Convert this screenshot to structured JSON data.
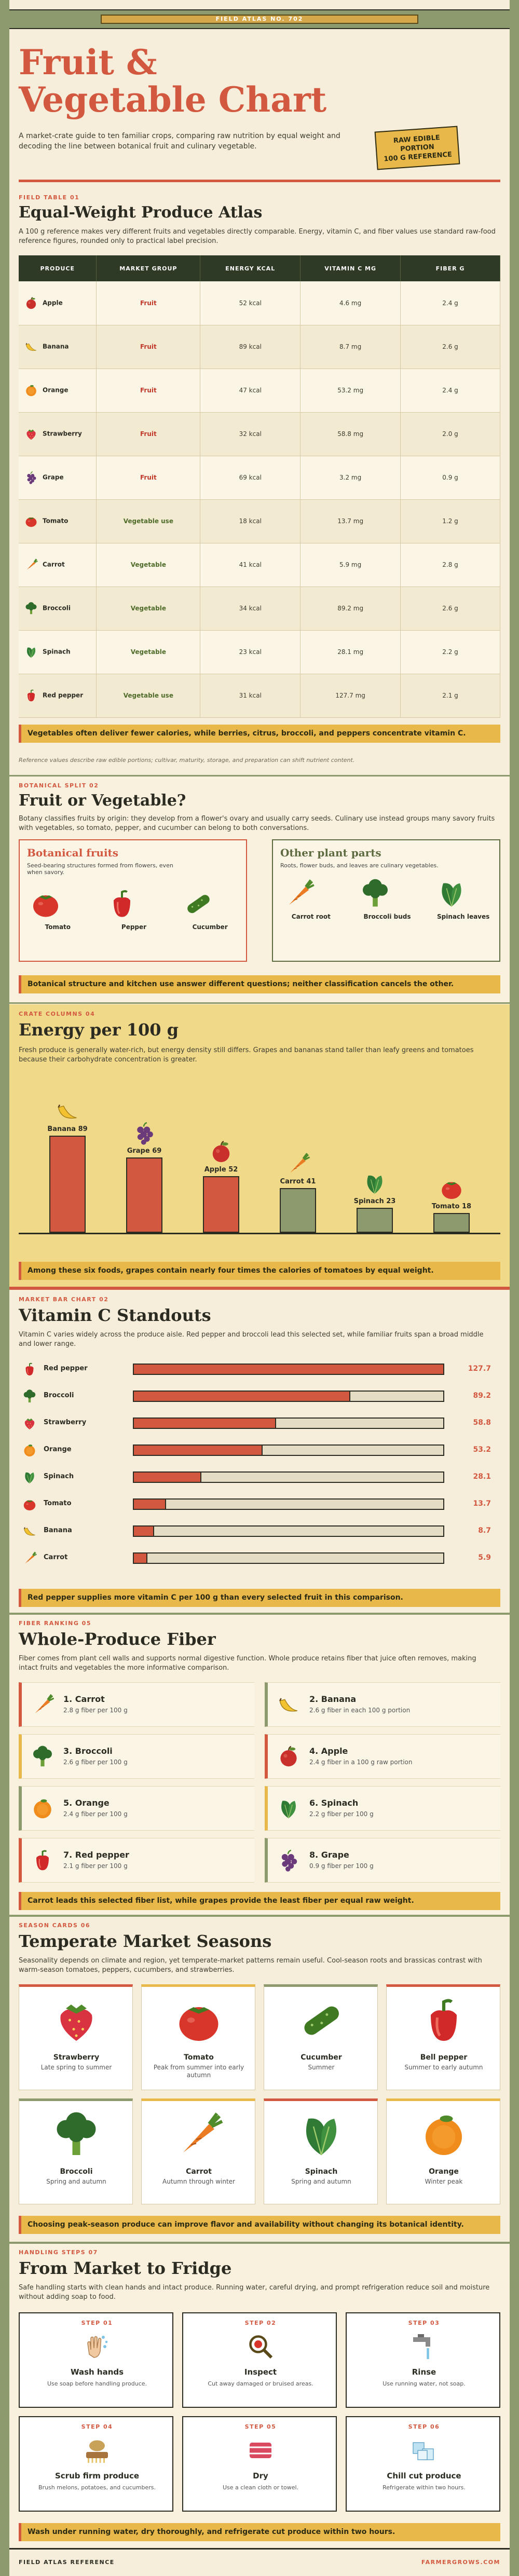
{
  "topbar": {
    "label": "FIELD ATLAS NO. 702"
  },
  "hero": {
    "title_line1": "Fruit &",
    "title_line2": "Vegetable Chart",
    "intro": "A market-crate guide to ten familiar crops, comparing raw nutrition by equal weight and decoding the line between botanical fruit and culinary vegetable.",
    "badge_line1": "RAW EDIBLE",
    "badge_line2": "PORTION",
    "badge_line3": "100 G REFERENCE"
  },
  "atlas": {
    "label": "FIELD TABLE 01",
    "title": "Equal-Weight Produce Atlas",
    "desc": "A 100 g reference makes very different fruits and vegetables directly comparable. Energy, vitamin C, and fiber values use standard raw-food reference figures, rounded only to practical label precision.",
    "headers": [
      "PRODUCE",
      "MARKET GROUP",
      "ENERGY KCAL",
      "VITAMIN C MG",
      "FIBER G"
    ],
    "rows": [
      {
        "name": "Apple",
        "group": "Fruit",
        "energy": "52 kcal",
        "vitc": "4.6 mg",
        "fiber": "2.4 g",
        "icon": "apple-icon"
      },
      {
        "name": "Banana",
        "group": "Fruit",
        "energy": "89 kcal",
        "vitc": "8.7 mg",
        "fiber": "2.6 g",
        "icon": "banana-icon"
      },
      {
        "name": "Orange",
        "group": "Fruit",
        "energy": "47 kcal",
        "vitc": "53.2 mg",
        "fiber": "2.4 g",
        "icon": "orange-icon"
      },
      {
        "name": "Strawberry",
        "group": "Fruit",
        "energy": "32 kcal",
        "vitc": "58.8 mg",
        "fiber": "2.0 g",
        "icon": "strawberry-icon"
      },
      {
        "name": "Grape",
        "group": "Fruit",
        "energy": "69 kcal",
        "vitc": "3.2 mg",
        "fiber": "0.9 g",
        "icon": "grape-icon"
      },
      {
        "name": "Tomato",
        "group": "Vegetable use",
        "energy": "18 kcal",
        "vitc": "13.7 mg",
        "fiber": "1.2 g",
        "icon": "tomato-icon"
      },
      {
        "name": "Carrot",
        "group": "Vegetable",
        "energy": "41 kcal",
        "vitc": "5.9 mg",
        "fiber": "2.8 g",
        "icon": "carrot-icon"
      },
      {
        "name": "Broccoli",
        "group": "Vegetable",
        "energy": "34 kcal",
        "vitc": "89.2 mg",
        "fiber": "2.6 g",
        "icon": "broccoli-icon"
      },
      {
        "name": "Spinach",
        "group": "Vegetable",
        "energy": "23 kcal",
        "vitc": "28.1 mg",
        "fiber": "2.2 g",
        "icon": "spinach-icon"
      },
      {
        "name": "Red pepper",
        "group": "Vegetable use",
        "energy": "31 kcal",
        "vitc": "127.7 mg",
        "fiber": "2.1 g",
        "icon": "pepper-icon"
      }
    ],
    "callout": "Vegetables often deliver fewer calories, while berries, citrus, broccoli, and peppers concentrate vitamin C.",
    "note": "Reference values describe raw edible portions; cultivar, maturity, storage, and preparation can shift nutrient content."
  },
  "botany": {
    "label": "BOTANICAL SPLIT 02",
    "title": "Fruit or Vegetable?",
    "desc": "Botany classifies fruits by origin: they develop from a flower's ovary and usually carry seeds. Culinary use instead groups many savory fruits with vegetables, so tomato, pepper, and cucumber can belong to both conversations.",
    "left_title": "Botanical fruits",
    "left_desc": "Seed-bearing structures formed from flowers, even when savory.",
    "left_items": [
      "Tomato",
      "Pepper",
      "Cucumber"
    ],
    "right_title": "Other plant parts",
    "right_desc": "Roots, flower buds, and leaves are culinary vegetables.",
    "right_items": [
      "Carrot root",
      "Broccoli buds",
      "Spinach leaves"
    ],
    "callout": "Botanical structure and kitchen use answer different questions; neither classification cancels the other."
  },
  "energy": {
    "label": "CRATE COLUMNS 04",
    "title": "Energy per 100 g",
    "desc": "Fresh produce is generally water-rich, but energy density still differs. Grapes and bananas stand taller than leafy greens and tomatoes because their carbohydrate concentration is greater.",
    "callout": "Among these six foods, grapes contain nearly four times the calories of tomatoes by equal weight."
  },
  "vitc": {
    "label": "MARKET BAR CHART 02",
    "title": "Vitamin C Standouts",
    "desc": "Vitamin C varies widely across the produce aisle. Red pepper and broccoli lead this selected set, while familiar fruits span a broad middle and lower range.",
    "callout": "Red pepper supplies more vitamin C per 100 g than every selected fruit in this comparison."
  },
  "fiber": {
    "label": "FIBER RANKING 05",
    "title": "Whole-Produce Fiber",
    "desc": "Fiber comes from plant cell walls and supports normal digestive function. Whole produce retains fiber that juice often removes, making intact fruits and vegetables the more informative comparison.",
    "items": [
      {
        "rank": "1. Carrot",
        "sub": "2.8 g fiber per 100 g",
        "icon": "carrot-icon"
      },
      {
        "rank": "2. Banana",
        "sub": "2.6 g fiber in each 100 g portion",
        "icon": "banana-icon"
      },
      {
        "rank": "3. Broccoli",
        "sub": "2.6 g fiber per 100 g",
        "icon": "broccoli-icon"
      },
      {
        "rank": "4. Apple",
        "sub": "2.4 g fiber in a 100 g raw portion",
        "icon": "apple-icon"
      },
      {
        "rank": "5. Orange",
        "sub": "2.4 g fiber per 100 g",
        "icon": "orange-icon"
      },
      {
        "rank": "6. Spinach",
        "sub": "2.2 g fiber per 100 g",
        "icon": "spinach-icon"
      },
      {
        "rank": "7. Red pepper",
        "sub": "2.1 g fiber per 100 g",
        "icon": "pepper-icon"
      },
      {
        "rank": "8. Grape",
        "sub": "0.9 g fiber per 100 g",
        "icon": "grape-icon"
      }
    ],
    "callout": "Carrot leads this selected fiber list, while grapes provide the least fiber per equal raw weight."
  },
  "seasons": {
    "label": "SEASON CARDS 06",
    "title": "Temperate Market Seasons",
    "desc": "Seasonality depends on climate and region, yet temperate-market patterns remain useful. Cool-season roots and brassicas contrast with warm-season tomatoes, peppers, cucumbers, and strawberries.",
    "cards": [
      {
        "name": "Strawberry",
        "season": "Late spring to summer",
        "icon": "strawberry-icon"
      },
      {
        "name": "Tomato",
        "season": "Peak from summer into early autumn",
        "icon": "tomato-icon"
      },
      {
        "name": "Cucumber",
        "season": "Summer",
        "icon": "cucumber-icon"
      },
      {
        "name": "Bell pepper",
        "season": "Summer to early autumn",
        "icon": "pepper-icon"
      },
      {
        "name": "Broccoli",
        "season": "Spring and autumn",
        "icon": "broccoli-icon"
      },
      {
        "name": "Carrot",
        "season": "Autumn through winter",
        "icon": "carrot-icon"
      },
      {
        "name": "Spinach",
        "season": "Spring and autumn",
        "icon": "spinach-icon"
      },
      {
        "name": "Orange",
        "season": "Winter peak",
        "icon": "orange-icon"
      }
    ],
    "callout": "Choosing peak-season produce can improve flavor and availability without changing its botanical identity."
  },
  "handling": {
    "label": "HANDLING STEPS 07",
    "title": "From Market to Fridge",
    "desc": "Safe handling starts with clean hands and intact produce. Running water, careful drying, and prompt refrigeration reduce soil and moisture without adding soap to food.",
    "steps": [
      {
        "step": "STEP 01",
        "title": "Wash hands",
        "sub": "Use soap before handling produce.",
        "icon": "hands-icon"
      },
      {
        "step": "STEP 02",
        "title": "Inspect",
        "sub": "Cut away damaged or bruised areas.",
        "icon": "inspect-icon"
      },
      {
        "step": "STEP 03",
        "title": "Rinse",
        "sub": "Use running water, not soap.",
        "icon": "faucet-icon"
      },
      {
        "step": "STEP 04",
        "title": "Scrub firm produce",
        "sub": "Brush melons, potatoes, and cucumbers.",
        "icon": "brush-icon"
      },
      {
        "step": "STEP 05",
        "title": "Dry",
        "sub": "Use a clean cloth or towel.",
        "icon": "towel-icon"
      },
      {
        "step": "STEP 06",
        "title": "Chill cut produce",
        "sub": "Refrigerate within two hours.",
        "icon": "ice-icon"
      }
    ],
    "callout": "Wash under running water, dry thoroughly, and refrigerate cut produce within two hours."
  },
  "footer": {
    "left": "FIELD ATLAS REFERENCE",
    "right": "FARMERGROWS.COM"
  },
  "chart_data": [
    {
      "type": "bar",
      "title": "Energy per 100 g",
      "categories": [
        "Banana",
        "Grape",
        "Apple",
        "Carrot",
        "Spinach",
        "Tomato"
      ],
      "values": [
        89,
        69,
        52,
        41,
        23,
        18
      ],
      "ylim": [
        0,
        100
      ]
    },
    {
      "type": "bar",
      "title": "Vitamin C Standouts",
      "categories": [
        "Red pepper",
        "Broccoli",
        "Strawberry",
        "Orange",
        "Spinach",
        "Tomato",
        "Banana",
        "Carrot"
      ],
      "values": [
        127.7,
        89.2,
        58.8,
        53.2,
        28.1,
        13.7,
        8.7,
        5.9
      ],
      "xlim": [
        0,
        127.7
      ]
    }
  ],
  "colors": {
    "accent": "#d2583f",
    "gold": "#e8b84a",
    "olive": "#5e6b41",
    "cream": "#f6eedb"
  }
}
